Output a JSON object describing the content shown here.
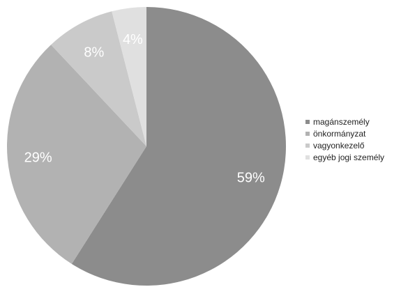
{
  "chart_data": {
    "type": "pie",
    "title": "",
    "categories": [
      "magánszemély",
      "önkormányzat",
      "vagyonkezelő",
      "egyéb jogi személy"
    ],
    "values": [
      59,
      29,
      8,
      4
    ],
    "labels": [
      "59%",
      "29%",
      "8%",
      "4%"
    ],
    "colors": [
      "#8c8c8c",
      "#b2b2b2",
      "#cacaca",
      "#e0e0e0"
    ],
    "legend_position": "right"
  }
}
